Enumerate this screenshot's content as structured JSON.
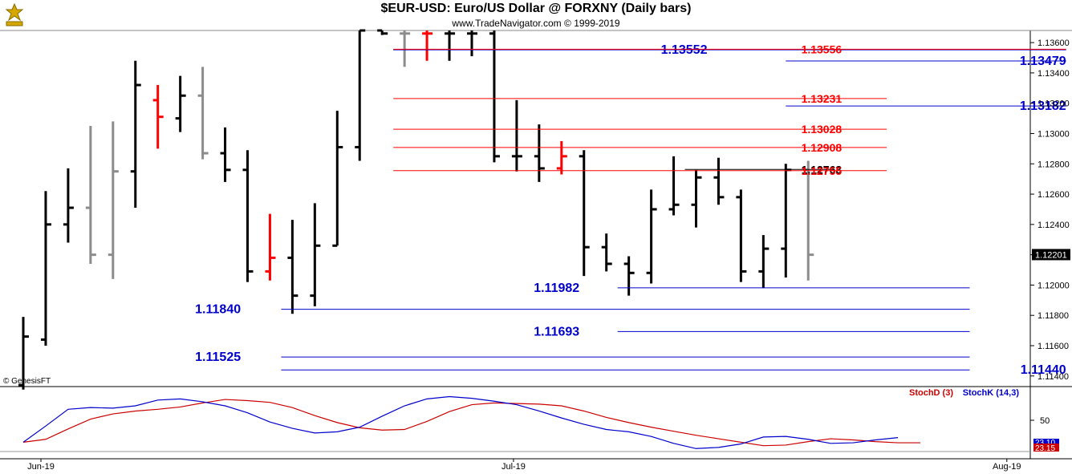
{
  "header": {
    "title": "$EUR-USD:  Euro/US Dollar @ FORXNY  (Daily bars)",
    "subtitle": "www.TradeNavigator.com © 1999-2019",
    "watermark": "© GenesisFT"
  },
  "colors": {
    "up": "#000000",
    "down": "#ff0000",
    "neutral": "#8c8c8c",
    "support": "#0000cc",
    "resistance": "#ff0000",
    "stochK": "#0000cc",
    "stochD": "#cc0000"
  },
  "chart_data": [
    {
      "type": "ohlc",
      "title": "$EUR-USD:  Euro/US Dollar @ FORXNY  (Daily bars)",
      "ylim": [
        1.1133,
        1.1368
      ],
      "yticks": [
        "1.13600",
        "1.13400",
        "1.13200",
        "1.13000",
        "1.12800",
        "1.12600",
        "1.12400",
        "1.12200",
        "1.12000",
        "1.11800",
        "1.11600",
        "1.11400"
      ],
      "last_price": "1.12201",
      "x_labels": [
        {
          "label": "Jun-19",
          "bar": 0
        },
        {
          "label": "Jul-19",
          "bar": 21
        },
        {
          "label": "Aug-19",
          "bar": 44
        }
      ],
      "bars": [
        {
          "o": 1.1134,
          "h": 1.1179,
          "l": 1.1131,
          "c": 1.1166,
          "col": "up"
        },
        {
          "o": 1.1164,
          "h": 1.1262,
          "l": 1.116,
          "c": 1.124,
          "col": "up"
        },
        {
          "o": 1.124,
          "h": 1.1277,
          "l": 1.1228,
          "c": 1.1251,
          "col": "up"
        },
        {
          "o": 1.1251,
          "h": 1.1305,
          "l": 1.1214,
          "c": 1.122,
          "col": "neutral"
        },
        {
          "o": 1.122,
          "h": 1.1308,
          "l": 1.1204,
          "c": 1.1275,
          "col": "neutral"
        },
        {
          "o": 1.1275,
          "h": 1.1348,
          "l": 1.1251,
          "c": 1.1332,
          "col": "up"
        },
        {
          "o": 1.1322,
          "h": 1.1332,
          "l": 1.129,
          "c": 1.1311,
          "col": "down"
        },
        {
          "o": 1.131,
          "h": 1.1338,
          "l": 1.1301,
          "c": 1.1325,
          "col": "up"
        },
        {
          "o": 1.1325,
          "h": 1.1344,
          "l": 1.1283,
          "c": 1.1287,
          "col": "neutral"
        },
        {
          "o": 1.1287,
          "h": 1.1304,
          "l": 1.1268,
          "c": 1.1276,
          "col": "up"
        },
        {
          "o": 1.1276,
          "h": 1.1289,
          "l": 1.1202,
          "c": 1.1209,
          "col": "up"
        },
        {
          "o": 1.1209,
          "h": 1.1247,
          "l": 1.1203,
          "c": 1.1218,
          "col": "down"
        },
        {
          "o": 1.1218,
          "h": 1.1243,
          "l": 1.1181,
          "c": 1.1193,
          "col": "up"
        },
        {
          "o": 1.1193,
          "h": 1.1254,
          "l": 1.1186,
          "c": 1.1226,
          "col": "up"
        },
        {
          "o": 1.1226,
          "h": 1.1315,
          "l": 1.1226,
          "c": 1.1291,
          "col": "up"
        },
        {
          "o": 1.1291,
          "h": 1.1368,
          "l": 1.1282,
          "c": 1.1368,
          "col": "up"
        },
        {
          "o": 1.1368,
          "h": 1.1368,
          "l": 1.1365,
          "c": 1.1366,
          "col": "up"
        },
        {
          "o": 1.1366,
          "h": 1.1368,
          "l": 1.1344,
          "c": 1.1366,
          "col": "neutral"
        },
        {
          "o": 1.1366,
          "h": 1.1368,
          "l": 1.1348,
          "c": 1.1366,
          "col": "down"
        },
        {
          "o": 1.1366,
          "h": 1.1368,
          "l": 1.1348,
          "c": 1.1366,
          "col": "up"
        },
        {
          "o": 1.1366,
          "h": 1.1368,
          "l": 1.1351,
          "c": 1.1366,
          "col": "up"
        },
        {
          "o": 1.1366,
          "h": 1.1368,
          "l": 1.1281,
          "c": 1.1285,
          "col": "up"
        },
        {
          "o": 1.1285,
          "h": 1.1322,
          "l": 1.1275,
          "c": 1.1285,
          "col": "up"
        },
        {
          "o": 1.1285,
          "h": 1.1306,
          "l": 1.1268,
          "c": 1.1277,
          "col": "up"
        },
        {
          "o": 1.1277,
          "h": 1.1295,
          "l": 1.1273,
          "c": 1.1285,
          "col": "down"
        },
        {
          "o": 1.1285,
          "h": 1.1289,
          "l": 1.1206,
          "c": 1.1225,
          "col": "up"
        },
        {
          "o": 1.1225,
          "h": 1.1234,
          "l": 1.1209,
          "c": 1.1214,
          "col": "up"
        },
        {
          "o": 1.1214,
          "h": 1.1219,
          "l": 1.1193,
          "c": 1.1208,
          "col": "up"
        },
        {
          "o": 1.1208,
          "h": 1.1263,
          "l": 1.1201,
          "c": 1.125,
          "col": "up"
        },
        {
          "o": 1.125,
          "h": 1.1285,
          "l": 1.1246,
          "c": 1.1253,
          "col": "up"
        },
        {
          "o": 1.1253,
          "h": 1.1276,
          "l": 1.1238,
          "c": 1.1271,
          "col": "up"
        },
        {
          "o": 1.1271,
          "h": 1.1284,
          "l": 1.1253,
          "c": 1.1258,
          "col": "up"
        },
        {
          "o": 1.1258,
          "h": 1.1263,
          "l": 1.1202,
          "c": 1.1209,
          "col": "up"
        },
        {
          "o": 1.1209,
          "h": 1.1233,
          "l": 1.1198,
          "c": 1.1224,
          "col": "up"
        },
        {
          "o": 1.1224,
          "h": 1.128,
          "l": 1.1205,
          "c": 1.1276,
          "col": "up"
        },
        {
          "o": 1.1276,
          "h": 1.1282,
          "l": 1.1203,
          "c": 1.122,
          "col": "neutral"
        }
      ],
      "levels": [
        {
          "label": "1.13552",
          "value": 1.13552,
          "kind": "support",
          "label_bar": 30.5,
          "from_bar": 16.5,
          "to_bar": 46.5
        },
        {
          "label": "1.13556",
          "value": 1.13556,
          "kind": "resistance",
          "label_bar": 36.5,
          "from_bar": 16.5,
          "to_bar": 46.5
        },
        {
          "label": "1.13479",
          "value": 1.13479,
          "kind": "support",
          "label_bar": 46.5,
          "from_bar": 34,
          "to_bar": 46.5
        },
        {
          "label": "1.13231",
          "value": 1.13231,
          "kind": "resistance",
          "label_bar": 36.5,
          "from_bar": 16.5,
          "to_bar": 38.5
        },
        {
          "label": "1.13182",
          "value": 1.13182,
          "kind": "support",
          "label_bar": 46.5,
          "from_bar": 34,
          "to_bar": 46.5
        },
        {
          "label": "1.13028",
          "value": 1.13028,
          "kind": "resistance",
          "label_bar": 36.5,
          "from_bar": 16.5,
          "to_bar": 38.5
        },
        {
          "label": "1.12908",
          "value": 1.12908,
          "kind": "resistance",
          "label_bar": 36.5,
          "from_bar": 16.5,
          "to_bar": 38.5
        },
        {
          "label": "1.12763",
          "value": 1.12763,
          "kind": "pivot",
          "label_bar": 36.5,
          "from_bar": 29.5,
          "to_bar": 36.0
        },
        {
          "label": "1.12755",
          "value": 1.12755,
          "kind": "resistance",
          "label_bar": 36.5,
          "from_bar": 16.5,
          "to_bar": 38.5
        },
        {
          "label": "1.11982",
          "value": 1.11982,
          "kind": "support",
          "label_bar": 24.8,
          "from_bar": 26.5,
          "to_bar": 42.2
        },
        {
          "label": "1.11840",
          "value": 1.1184,
          "kind": "support",
          "label_bar": 9.7,
          "from_bar": 11.5,
          "to_bar": 42.2
        },
        {
          "label": "1.11693",
          "value": 1.11693,
          "kind": "support",
          "label_bar": 24.8,
          "from_bar": 26.5,
          "to_bar": 42.2
        },
        {
          "label": "1.11525",
          "value": 1.11525,
          "kind": "support",
          "label_bar": 9.7,
          "from_bar": 11.5,
          "to_bar": 42.2
        },
        {
          "label": "1.11440",
          "value": 1.1144,
          "kind": "support",
          "label_bar": 46.5,
          "from_bar": 11.5,
          "to_bar": 42.2
        }
      ]
    },
    {
      "type": "line",
      "title": "",
      "ylim": [
        0,
        100
      ],
      "yticks": [
        "50"
      ],
      "last_values": [
        "23.10",
        "23.15"
      ],
      "series": [
        {
          "name": "StochD (3)",
          "color_key": "stochD",
          "values": [
            12,
            17,
            35,
            52,
            61,
            66,
            69,
            73,
            80,
            86,
            84,
            81,
            72,
            58,
            46,
            37,
            33,
            34,
            48,
            65,
            77,
            80,
            79,
            78,
            75,
            66,
            55,
            46,
            38,
            31,
            24,
            18,
            12,
            6,
            7,
            13,
            18,
            16,
            13,
            11,
            11
          ]
        },
        {
          "name": "StochK (14,3)",
          "color_key": "stochK",
          "values": [
            12,
            40,
            69,
            72,
            71,
            75,
            85,
            87,
            82,
            75,
            63,
            47,
            36,
            28,
            30,
            38,
            57,
            75,
            87,
            91,
            88,
            83,
            77,
            66,
            54,
            43,
            34,
            30,
            22,
            10,
            1,
            3,
            9,
            21,
            22,
            17,
            10,
            11,
            16,
            20
          ]
        }
      ]
    }
  ]
}
